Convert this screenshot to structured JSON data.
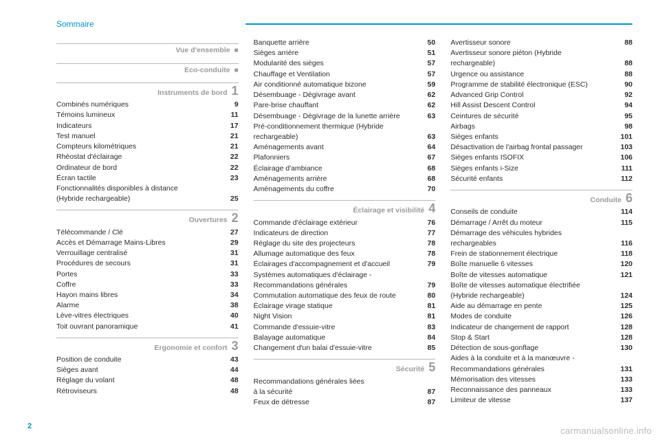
{
  "header": {
    "title": "Sommaire"
  },
  "page_number": "2",
  "footer_link": "carmanualsonline.info",
  "colors": {
    "accent": "#0093c9",
    "text": "#2b2b2b",
    "muted": "#9a9a9a",
    "divider": "#b8b8b8",
    "background": "#ffffff"
  },
  "typography": {
    "family": "Arial",
    "body_pt": 10.5,
    "section_title_pt": 10.5,
    "section_num_pt": 18,
    "header_pt": 12
  },
  "col1": {
    "sections": [
      {
        "title": "Vue d'ensemble",
        "marker": "■",
        "items": []
      },
      {
        "title": "Eco-conduite",
        "marker": "■",
        "items": []
      },
      {
        "title": "Instruments de bord",
        "num": "1",
        "items": [
          {
            "label": "Combinés numériques",
            "page": "9"
          },
          {
            "label": "Témoins lumineux",
            "page": "11"
          },
          {
            "label": "Indicateurs",
            "page": "17"
          },
          {
            "label": "Test manuel",
            "page": "21"
          },
          {
            "label": "Compteurs kilométriques",
            "page": "21"
          },
          {
            "label": "Rhéostat d'éclairage",
            "page": "22"
          },
          {
            "label": "Ordinateur de bord",
            "page": "22"
          },
          {
            "label": "Écran tactile",
            "page": "23"
          },
          {
            "label": "Fonctionnalités disponibles à distance",
            "page": ""
          },
          {
            "label": "(Hybride rechargeable)",
            "page": "25"
          }
        ]
      },
      {
        "title": "Ouvertures",
        "num": "2",
        "items": [
          {
            "label": "Télécommande / Clé",
            "page": "27"
          },
          {
            "label": "Accès et Démarrage Mains-Libres",
            "page": "29"
          },
          {
            "label": "Verrouillage centralisé",
            "page": "31"
          },
          {
            "label": "Procédures de secours",
            "page": "31"
          },
          {
            "label": "Portes",
            "page": "33"
          },
          {
            "label": "Coffre",
            "page": "33"
          },
          {
            "label": "Hayon mains libres",
            "page": "34"
          },
          {
            "label": "Alarme",
            "page": "38"
          },
          {
            "label": "Lève-vitres électriques",
            "page": "40"
          },
          {
            "label": "Toit ouvrant panoramique",
            "page": "41"
          }
        ]
      },
      {
        "title": "Ergonomie et confort",
        "num": "3",
        "items": [
          {
            "label": "Position de conduite",
            "page": "43"
          },
          {
            "label": "Sièges avant",
            "page": "44"
          },
          {
            "label": "Réglage du volant",
            "page": "48"
          },
          {
            "label": "Rétroviseurs",
            "page": "48"
          }
        ]
      }
    ]
  },
  "col2": {
    "cont_items": [
      {
        "label": "Banquette arrière",
        "page": "50"
      },
      {
        "label": "Sièges arrière",
        "page": "51"
      },
      {
        "label": "Modularité des sièges",
        "page": "57"
      },
      {
        "label": "Chauffage et Ventilation",
        "page": "57"
      },
      {
        "label": "Air conditionné automatique bizone",
        "page": "59"
      },
      {
        "label": "Désembuage - Dégivrage avant",
        "page": "62"
      },
      {
        "label": "Pare-brise chauffant",
        "page": "62"
      },
      {
        "label": "Désembuage - Dégivrage de la lunette arrière",
        "page": "63"
      },
      {
        "label": "Pré-conditionnement thermique (Hybride",
        "page": ""
      },
      {
        "label": "rechargeable)",
        "page": "63"
      },
      {
        "label": "Aménagements avant",
        "page": "64"
      },
      {
        "label": "Plafonniers",
        "page": "67"
      },
      {
        "label": "Éclairage d'ambiance",
        "page": "68"
      },
      {
        "label": "Aménagements arrière",
        "page": "68"
      },
      {
        "label": "Aménagements du coffre",
        "page": "70"
      }
    ],
    "sections": [
      {
        "title": "Éclairage et visibilité",
        "num": "4",
        "items": [
          {
            "label": "Commande d'éclairage extérieur",
            "page": "76"
          },
          {
            "label": "Indicateurs de direction",
            "page": "77"
          },
          {
            "label": "Réglage du site des projecteurs",
            "page": "78"
          },
          {
            "label": "Allumage automatique des feux",
            "page": "78"
          },
          {
            "label": "Éclairages d'accompagnement et d'accueil",
            "page": "79"
          },
          {
            "label": "Systèmes automatiques d'éclairage -",
            "page": ""
          },
          {
            "label": "Recommandations générales",
            "page": "79"
          },
          {
            "label": "Commutation automatique des feux de route",
            "page": "80"
          },
          {
            "label": "Éclairage virage statique",
            "page": "81"
          },
          {
            "label": "Night Vision",
            "page": "81"
          },
          {
            "label": "Commande d'essuie-vitre",
            "page": "83"
          },
          {
            "label": "Balayage automatique",
            "page": "84"
          },
          {
            "label": "Changement d'un balai d'essuie-vitre",
            "page": "85"
          }
        ]
      },
      {
        "title": "Sécurité",
        "num": "5",
        "items": [
          {
            "label": "Recommandations générales liées",
            "page": ""
          },
          {
            "label": "à la sécurité",
            "page": "87"
          },
          {
            "label": "Feux de détresse",
            "page": "87"
          }
        ]
      }
    ]
  },
  "col3": {
    "cont_items": [
      {
        "label": "Avertisseur sonore",
        "page": "88"
      },
      {
        "label": "Avertisseur sonore piéton (Hybride",
        "page": ""
      },
      {
        "label": "rechargeable)",
        "page": "88"
      },
      {
        "label": "Urgence ou assistance",
        "page": "88"
      },
      {
        "label": "Programme de stabilité électronique (ESC)",
        "page": "90"
      },
      {
        "label": "Advanced Grip Control",
        "page": "92"
      },
      {
        "label": "Hill Assist Descent Control",
        "page": "94"
      },
      {
        "label": "Ceintures de sécurité",
        "page": "95"
      },
      {
        "label": "Airbags",
        "page": "98"
      },
      {
        "label": "Sièges enfants",
        "page": "101"
      },
      {
        "label": "Désactivation de l'airbag frontal passager",
        "page": "103"
      },
      {
        "label": "Sièges enfants ISOFIX",
        "page": "106"
      },
      {
        "label": "Sièges enfants i-Size",
        "page": "111"
      },
      {
        "label": "Sécurité enfants",
        "page": "112"
      }
    ],
    "sections": [
      {
        "title": "Conduite",
        "num": "6",
        "items": [
          {
            "label": "Conseils de conduite",
            "page": "114"
          },
          {
            "label": "Démarrage / Arrêt du moteur",
            "page": "115"
          },
          {
            "label": "Démarrage des véhicules hybrides",
            "page": ""
          },
          {
            "label": "rechargeables",
            "page": "116"
          },
          {
            "label": "Frein de stationnement électrique",
            "page": "118"
          },
          {
            "label": "Boîte manuelle 6 vitesses",
            "page": "120"
          },
          {
            "label": "Boîte de vitesses automatique",
            "page": "121"
          },
          {
            "label": "Boîte de vitesses automatique électrifiée",
            "page": ""
          },
          {
            "label": "(Hybride rechargeable)",
            "page": "124"
          },
          {
            "label": "Aide au démarrage en pente",
            "page": "125"
          },
          {
            "label": "Modes de conduite",
            "page": "126"
          },
          {
            "label": "Indicateur de changement de rapport",
            "page": "128"
          },
          {
            "label": "Stop & Start",
            "page": "128"
          },
          {
            "label": "Détection de sous-gonflage",
            "page": "130"
          },
          {
            "label": "Aides à la conduite et à la manœuvre -",
            "page": ""
          },
          {
            "label": "Recommandations générales",
            "page": "131"
          },
          {
            "label": "Mémorisation des vitesses",
            "page": "133"
          },
          {
            "label": "Reconnaissance des panneaux",
            "page": "133"
          },
          {
            "label": "Limiteur de vitesse",
            "page": "137"
          }
        ]
      }
    ]
  }
}
